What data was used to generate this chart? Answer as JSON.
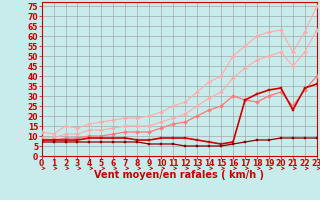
{
  "xlabel": "Vent moyen/en rafales ( km/h )",
  "xlabel_color": "#cc0000",
  "background_color": "#c8ecec",
  "grid_color": "#999999",
  "x_values": [
    0,
    1,
    2,
    3,
    4,
    5,
    6,
    7,
    8,
    9,
    10,
    11,
    12,
    13,
    14,
    15,
    16,
    17,
    18,
    19,
    20,
    21,
    22,
    23
  ],
  "yticks": [
    0,
    5,
    10,
    15,
    20,
    25,
    30,
    35,
    40,
    45,
    50,
    55,
    60,
    65,
    70,
    75
  ],
  "ylim": [
    0,
    77
  ],
  "xlim": [
    0,
    23
  ],
  "series": [
    {
      "color": "#ffaaaa",
      "linewidth": 0.8,
      "marker": "D",
      "markersize": 2,
      "values": [
        12,
        11,
        15,
        14,
        16,
        17,
        18,
        19,
        19,
        20,
        22,
        25,
        27,
        32,
        37,
        40,
        50,
        55,
        60,
        62,
        63,
        52,
        62,
        75
      ]
    },
    {
      "color": "#ffaaaa",
      "linewidth": 0.8,
      "marker": "D",
      "markersize": 2,
      "values": [
        9,
        9,
        11,
        11,
        13,
        13,
        14,
        15,
        15,
        15,
        17,
        19,
        21,
        25,
        29,
        32,
        39,
        44,
        48,
        50,
        52,
        45,
        52,
        63
      ]
    },
    {
      "color": "#ff7777",
      "linewidth": 0.9,
      "marker": "D",
      "markersize": 2,
      "values": [
        8,
        8,
        9,
        9,
        10,
        10,
        11,
        12,
        12,
        12,
        14,
        16,
        17,
        20,
        23,
        25,
        30,
        28,
        27,
        30,
        32,
        25,
        33,
        40
      ]
    },
    {
      "color": "#cc0000",
      "linewidth": 1.2,
      "marker": "s",
      "markersize": 2,
      "values": [
        8,
        8,
        8,
        8,
        9,
        9,
        9,
        9,
        8,
        8,
        9,
        9,
        9,
        8,
        7,
        6,
        7,
        28,
        31,
        33,
        34,
        23,
        34,
        36
      ]
    },
    {
      "color": "#880000",
      "linewidth": 0.9,
      "marker": "s",
      "markersize": 2,
      "values": [
        7,
        7,
        7,
        7,
        7,
        7,
        7,
        7,
        7,
        6,
        6,
        6,
        5,
        5,
        5,
        5,
        6,
        7,
        8,
        8,
        9,
        9,
        9,
        9
      ]
    }
  ],
  "arrow_color": "#cc0000",
  "tick_color": "#cc0000",
  "tick_fontsize": 5.5,
  "xlabel_fontsize": 7,
  "spine_color": "#cc0000"
}
